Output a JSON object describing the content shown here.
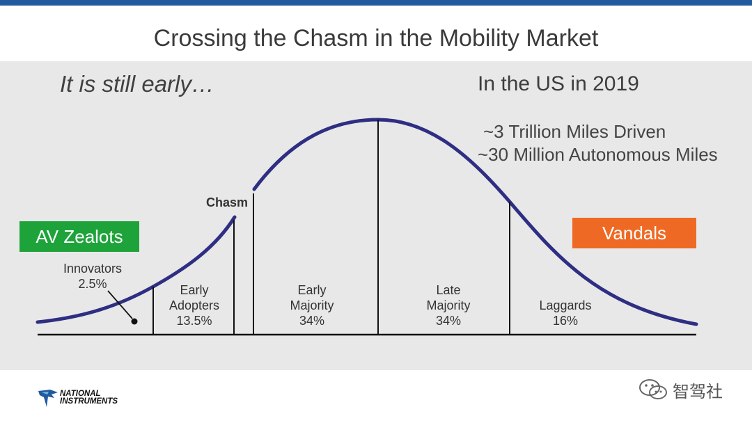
{
  "slide": {
    "title": "Crossing the Chasm in the Mobility Market",
    "tagline": "It is still early…",
    "stats": {
      "title": "In the US in 2019",
      "lines": [
        "~3 Trillion Miles Driven",
        "~30 Million Autonomous Miles"
      ]
    },
    "tags": {
      "zealots": "AV Zealots",
      "vandals": "Vandals"
    },
    "chasm_label": "Chasm",
    "segments": [
      {
        "line1": "Innovators",
        "line2": "2.5%"
      },
      {
        "line1": "Early",
        "line2": "Adopters",
        "line3": "13.5%"
      },
      {
        "line1": "Early",
        "line2": "Majority",
        "line3": "34%"
      },
      {
        "line1": "Late",
        "line2": "Majority",
        "line3": "34%"
      },
      {
        "line1": "Laggards",
        "line2": "16%"
      }
    ]
  },
  "footer": {
    "logo_line1": "NATIONAL",
    "logo_line2": "INSTRUMENTS",
    "watermark": "智驾社"
  },
  "colors": {
    "top_bar": "#1f5b9e",
    "curve": "#2e2e83",
    "zealots": "#1ea33a",
    "vandals": "#ee6a24",
    "panel": "#e8e8e8"
  }
}
